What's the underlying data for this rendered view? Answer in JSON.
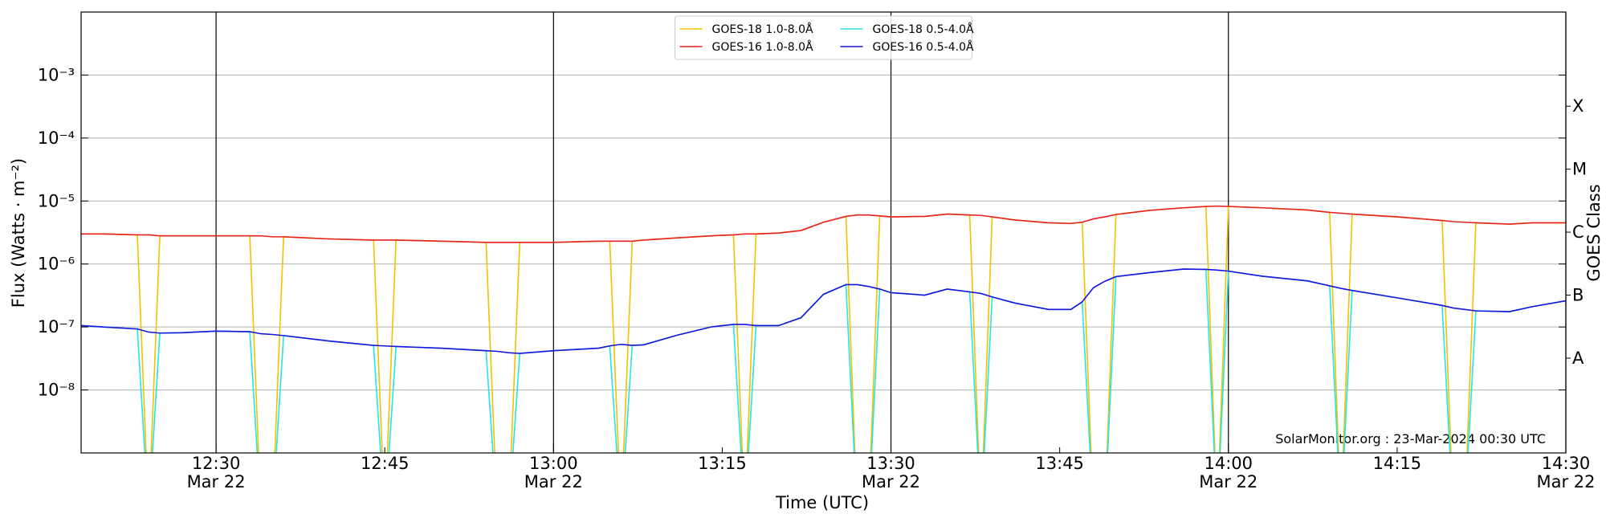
{
  "chart_data": {
    "type": "line",
    "xlabel": "Time (UTC)",
    "ylabel": "Flux (Watts · m⁻²)",
    "y2label": "GOES Class",
    "annotation": "SolarMonitor.org : 23-Mar-2024 00:30 UTC",
    "log_y": true,
    "grid": true,
    "legend": "upper center",
    "xlim": [
      "12:18",
      "14:30"
    ],
    "xticks": [
      {
        "value": "12:30",
        "label": [
          "12:30",
          "Mar 22"
        ]
      },
      "12:45",
      {
        "value": "13:00",
        "label": [
          "13:00",
          "Mar 22"
        ]
      },
      "13:15",
      {
        "value": "13:30",
        "label": [
          "13:30",
          "Mar 22"
        ]
      },
      "13:45",
      {
        "value": "14:00",
        "label": [
          "14:00",
          "Mar 22"
        ]
      },
      "14:15",
      {
        "value": "14:30",
        "label": [
          "14:30",
          "Mar 22"
        ]
      }
    ],
    "ylim": [
      1e-09,
      0.01
    ],
    "yticks": [
      {
        "value": 1e-08,
        "label": "10⁻⁸"
      },
      {
        "value": 1e-07,
        "label": "10⁻⁷"
      },
      {
        "value": 1e-06,
        "label": "10⁻⁶"
      },
      {
        "value": 1e-05,
        "label": "10⁻⁵"
      },
      {
        "value": 0.0001,
        "label": "10⁻⁴"
      },
      {
        "value": 0.001,
        "label": "10⁻³"
      }
    ],
    "y2lim": [
      1e-09,
      0.01
    ],
    "y2ticks": [
      {
        "value": 3.2e-08,
        "label": "A"
      },
      {
        "value": 3.2e-07,
        "label": "B"
      },
      {
        "value": 3.2e-06,
        "label": "C"
      },
      {
        "value": 3.2e-05,
        "label": "M"
      },
      {
        "value": 0.00032,
        "label": "X"
      }
    ],
    "x": [
      "12:18",
      "12:20",
      "12:23",
      "12:24",
      "12:25",
      "12:27",
      "12:30",
      "12:33",
      "12:34",
      "12:35",
      "12:36",
      "12:40",
      "12:44",
      "12:45",
      "12:46",
      "12:50",
      "12:54",
      "12:55",
      "12:56",
      "12:57",
      "13:00",
      "13:04",
      "13:05",
      "13:06",
      "13:07",
      "13:08",
      "13:11",
      "13:14",
      "13:16",
      "13:17",
      "13:18",
      "13:20",
      "13:22",
      "13:24",
      "13:26",
      "13:27",
      "13:28",
      "13:29",
      "13:30",
      "13:33",
      "13:35",
      "13:37",
      "13:38",
      "13:39",
      "13:41",
      "13:44",
      "13:46",
      "13:47",
      "13:48",
      "13:49",
      "13:50",
      "13:53",
      "13:56",
      "13:58",
      "13:59",
      "14:00",
      "14:03",
      "14:07",
      "14:09",
      "14:10",
      "14:11",
      "14:15",
      "14:19",
      "14:20",
      "14:21",
      "14:22",
      "14:25",
      "14:27",
      "14:30"
    ],
    "series": [
      {
        "name": "GOES-18 1.0-8.0Å",
        "color": "#f2c200",
        "values": [
          3e-06,
          3e-06,
          2.9e-06,
          1e-10,
          2.8e-06,
          2.8e-06,
          2.8e-06,
          2.8e-06,
          1e-10,
          1e-10,
          2.7e-06,
          2.5e-06,
          2.4e-06,
          1e-10,
          2.4e-06,
          2.3e-06,
          2.2e-06,
          1e-10,
          1e-10,
          2.2e-06,
          2.2e-06,
          2.3e-06,
          2.3e-06,
          1e-10,
          2.3e-06,
          2.4e-06,
          2.6e-06,
          2.8e-06,
          2.9e-06,
          1e-10,
          3e-06,
          3.1e-06,
          3.4e-06,
          4.6e-06,
          5.7e-06,
          1e-10,
          1e-10,
          5.8e-06,
          5.6e-06,
          5.7e-06,
          6.2e-06,
          6e-06,
          1e-10,
          5.6e-06,
          5e-06,
          4.5e-06,
          4.4e-06,
          4.6e-06,
          1e-10,
          1e-10,
          6.1e-06,
          7.1e-06,
          7.8e-06,
          8.2e-06,
          1e-10,
          8.2e-06,
          7.8e-06,
          7.2e-06,
          6.6e-06,
          1e-10,
          6.2e-06,
          5.6e-06,
          4.9e-06,
          1e-10,
          1e-10,
          4.5e-06,
          4.3e-06,
          4.5e-06,
          4.5e-06
        ]
      },
      {
        "name": "GOES-16 1.0-8.0Å",
        "color": "#e8211c",
        "values": [
          3e-06,
          3e-06,
          2.9e-06,
          2.9e-06,
          2.8e-06,
          2.8e-06,
          2.8e-06,
          2.8e-06,
          2.8e-06,
          2.7e-06,
          2.7e-06,
          2.5e-06,
          2.4e-06,
          2.4e-06,
          2.4e-06,
          2.3e-06,
          2.2e-06,
          2.2e-06,
          2.2e-06,
          2.2e-06,
          2.2e-06,
          2.3e-06,
          2.3e-06,
          2.3e-06,
          2.3e-06,
          2.4e-06,
          2.6e-06,
          2.8e-06,
          2.9e-06,
          3e-06,
          3e-06,
          3.1e-06,
          3.4e-06,
          4.6e-06,
          5.7e-06,
          6e-06,
          6e-06,
          5.8e-06,
          5.6e-06,
          5.7e-06,
          6.2e-06,
          6e-06,
          5.9e-06,
          5.6e-06,
          5e-06,
          4.5e-06,
          4.4e-06,
          4.6e-06,
          5.2e-06,
          5.6e-06,
          6.1e-06,
          7.1e-06,
          7.8e-06,
          8.2e-06,
          8.3e-06,
          8.2e-06,
          7.8e-06,
          7.2e-06,
          6.6e-06,
          6.4e-06,
          6.2e-06,
          5.6e-06,
          4.9e-06,
          4.7e-06,
          4.6e-06,
          4.5e-06,
          4.3e-06,
          4.5e-06,
          4.5e-06
        ]
      },
      {
        "name": "GOES-18 0.5-4.0Å",
        "color": "#22e6e6",
        "values": [
          1.05e-07,
          1e-07,
          9.3e-08,
          1e-10,
          8e-08,
          8.1e-08,
          8.6e-08,
          8.4e-08,
          1e-10,
          1e-10,
          7.3e-08,
          6e-08,
          5.1e-08,
          1e-10,
          4.9e-08,
          4.6e-08,
          4.2e-08,
          1e-10,
          1e-10,
          3.8e-08,
          4.2e-08,
          4.6e-08,
          5e-08,
          1e-10,
          5.1e-08,
          5.2e-08,
          7.4e-08,
          1e-07,
          1.1e-07,
          1e-10,
          1.05e-07,
          1.05e-07,
          1.4e-07,
          3.3e-07,
          4.7e-07,
          1e-10,
          1e-10,
          4e-07,
          3.5e-07,
          3.2e-07,
          4e-07,
          3.6e-07,
          1e-10,
          3e-07,
          2.4e-07,
          1.9e-07,
          1.9e-07,
          2.5e-07,
          1e-10,
          1e-10,
          6.3e-07,
          7.3e-07,
          8.3e-07,
          8.2e-07,
          1e-10,
          7.7e-07,
          6.4e-07,
          5.4e-07,
          4.5e-07,
          1e-10,
          3.8e-07,
          2.9e-07,
          2.2e-07,
          1e-10,
          1e-10,
          1.8e-07,
          1.75e-07,
          2.1e-07,
          2.6e-07
        ]
      },
      {
        "name": "GOES-16 0.5-4.0Å",
        "color": "#1414dc",
        "values": [
          1.05e-07,
          1e-07,
          9.3e-08,
          8.3e-08,
          8e-08,
          8.1e-08,
          8.6e-08,
          8.4e-08,
          7.8e-08,
          7.6e-08,
          7.3e-08,
          6e-08,
          5.1e-08,
          5e-08,
          4.9e-08,
          4.6e-08,
          4.2e-08,
          4.1e-08,
          3.9e-08,
          3.8e-08,
          4.2e-08,
          4.6e-08,
          5e-08,
          5.3e-08,
          5.1e-08,
          5.2e-08,
          7.4e-08,
          1e-07,
          1.1e-07,
          1.1e-07,
          1.05e-07,
          1.05e-07,
          1.4e-07,
          3.3e-07,
          4.7e-07,
          4.7e-07,
          4.4e-07,
          4e-07,
          3.5e-07,
          3.2e-07,
          4e-07,
          3.6e-07,
          3.4e-07,
          3e-07,
          2.4e-07,
          1.9e-07,
          1.9e-07,
          2.5e-07,
          4.2e-07,
          5.3e-07,
          6.3e-07,
          7.3e-07,
          8.3e-07,
          8.2e-07,
          8e-07,
          7.7e-07,
          6.4e-07,
          5.4e-07,
          4.5e-07,
          4.1e-07,
          3.8e-07,
          2.9e-07,
          2.2e-07,
          2e-07,
          1.9e-07,
          1.8e-07,
          1.75e-07,
          2.1e-07,
          2.6e-07
        ]
      }
    ]
  }
}
